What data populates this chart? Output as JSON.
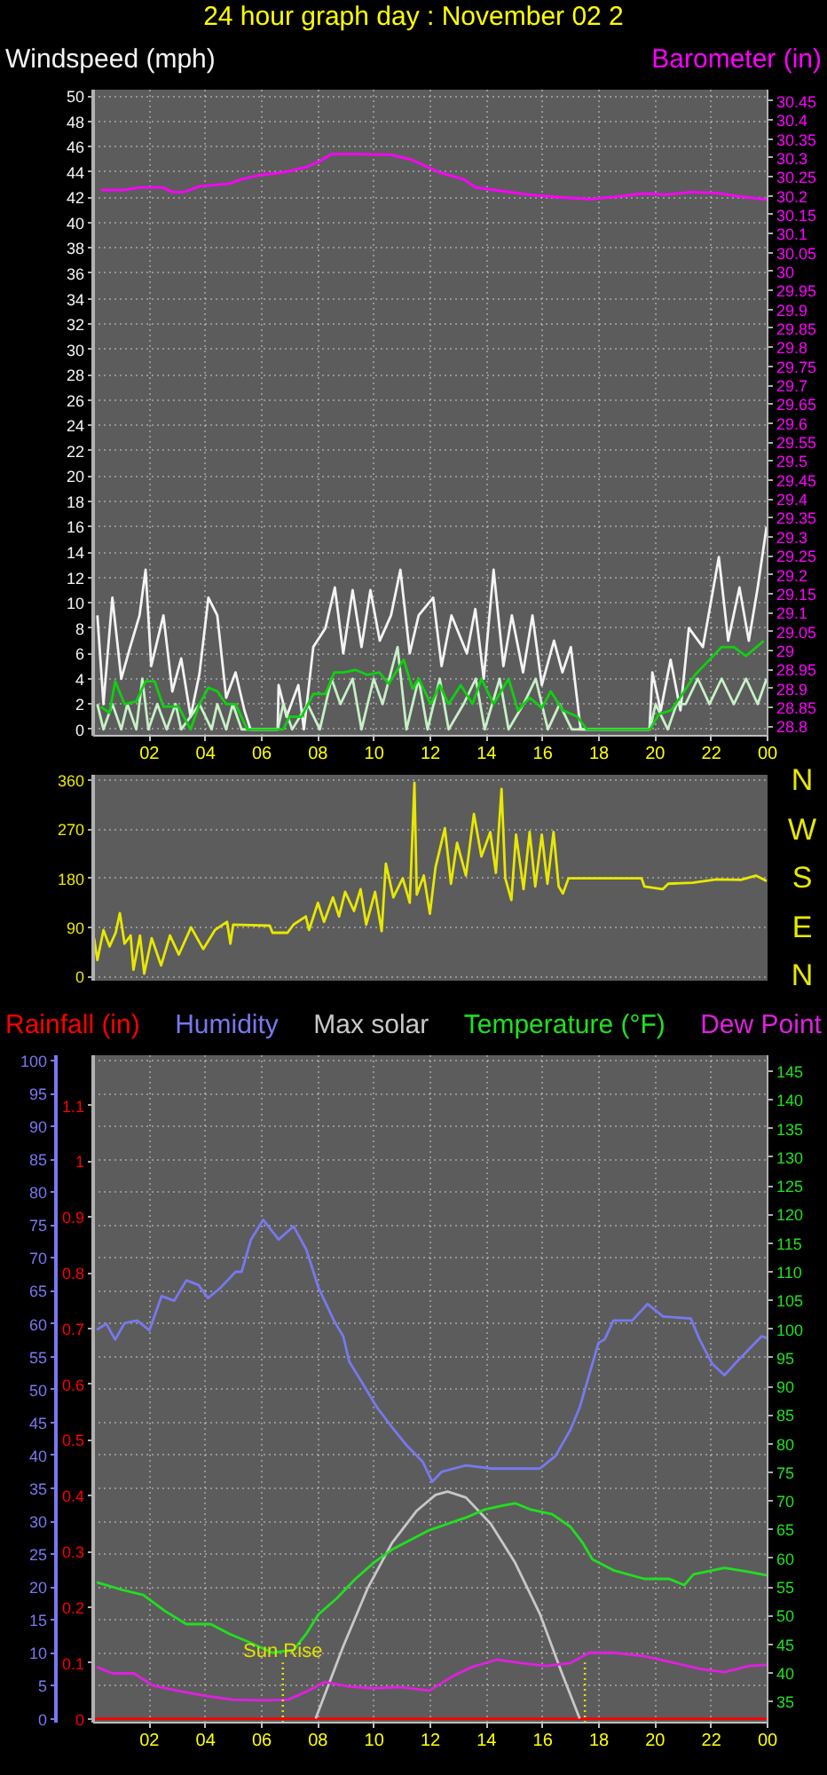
{
  "chart_data": [
    {
      "type": "line",
      "title": "24 hour graph day : November 02 2",
      "xlim": [
        "--11-02T00:00",
        "--11-03T00:00"
      ],
      "xticks": [
        {
          "value": "--11-02T02:00",
          "label": "02"
        },
        {
          "value": "--11-02T04:00",
          "label": "04"
        },
        {
          "value": "--11-02T06:00",
          "label": "06"
        },
        {
          "value": "--11-02T08:00",
          "label": "08"
        },
        {
          "value": "--11-02T10:00",
          "label": "10"
        },
        {
          "value": "--11-02T12:00",
          "label": "12"
        },
        {
          "value": "--11-02T14:00",
          "label": "14"
        },
        {
          "value": "--11-02T16:00",
          "label": "16"
        },
        {
          "value": "--11-02T18:00",
          "label": "18"
        },
        {
          "value": "--11-02T20:00",
          "label": "20"
        },
        {
          "value": "--11-02T22:00",
          "label": "22"
        },
        {
          "value": "--11-03T00:00",
          "label": "00"
        }
      ],
      "ylim": [
        -0.5,
        50.5
      ],
      "yticks": [
        0,
        2,
        4,
        6,
        8,
        10,
        12,
        14,
        16,
        18,
        20,
        22,
        24,
        26,
        28,
        30,
        32,
        34,
        36,
        38,
        40,
        42,
        44,
        46,
        48,
        50
      ],
      "y2lim": [
        28.775,
        30.48
      ],
      "y2ticks": [
        28.8,
        28.85,
        28.9,
        28.95,
        29,
        29.05,
        29.1,
        29.15,
        29.2,
        29.25,
        29.3,
        29.35,
        29.4,
        29.45,
        29.5,
        29.55,
        29.6,
        29.65,
        29.7,
        29.75,
        29.8,
        29.85,
        29.9,
        29.95,
        30,
        30.05,
        30.1,
        30.15,
        30.2,
        30.25,
        30.3,
        30.35,
        30.4,
        30.45
      ],
      "grid": true,
      "legend": "top",
      "series": [
        {
          "name": "Windspeed (mph)",
          "color": "#f4f4f4",
          "x": [
            "--11-02T00:09",
            "--11-02T00:22",
            "--11-02T00:41",
            "--11-02T01:00",
            "--11-02T01:19",
            "--11-02T01:39",
            "--11-02T01:52",
            "--11-02T02:04",
            "--11-02T02:30",
            "--11-02T02:49",
            "--11-02T03:08",
            "--11-02T03:28",
            "--11-02T03:47",
            "--11-02T04:06",
            "--11-02T04:25",
            "--11-02T04:44",
            "--11-02T05:04",
            "--11-02T05:23",
            "--11-02T05:36",
            "--11-02T06:34",
            "--11-02T06:36",
            "--11-02T06:53",
            "--11-02T07:18",
            "--11-02T07:30",
            "--11-02T07:50",
            "--11-02T08:16",
            "--11-02T08:36",
            "--11-02T08:54",
            "--11-02T09:14",
            "--11-02T09:33",
            "--11-02T09:52",
            "--11-02T10:12",
            "--11-02T10:36",
            "--11-02T10:56",
            "--11-02T11:16",
            "--11-02T11:35",
            "--11-02T12:06",
            "--11-02T12:24",
            "--11-02T12:45",
            "--11-02T13:18",
            "--11-02T13:36",
            "--11-02T13:54",
            "--11-02T14:15",
            "--11-02T14:36",
            "--11-02T14:54",
            "--11-02T15:18",
            "--11-02T15:38",
            "--11-02T15:58",
            "--11-02T16:24",
            "--11-02T16:42",
            "--11-02T17:00",
            "--11-02T17:21",
            "--11-02T19:48",
            "--11-02T19:54",
            "--11-02T20:12",
            "--11-02T20:33",
            "--11-02T20:54",
            "--11-02T21:12",
            "--11-02T21:42",
            "--11-02T22:16",
            "--11-02T22:36",
            "--11-02T23:00",
            "--11-02T23:20",
            "--11-02T23:39",
            "--11-02T23:58"
          ],
          "values": [
            9,
            2,
            10.4,
            4,
            6.5,
            9,
            12.6,
            5,
            9,
            3,
            5.6,
            1,
            4.4,
            10.4,
            9,
            2.5,
            4.5,
            1.5,
            0,
            0,
            3.5,
            1,
            3.5,
            0,
            6.5,
            8,
            11.2,
            6,
            11,
            6.5,
            11,
            7,
            9,
            12.6,
            6,
            9,
            10.4,
            5,
            9,
            6,
            9.5,
            4,
            12.6,
            5,
            9,
            4.5,
            9,
            3.5,
            7,
            4.5,
            6.5,
            0,
            0,
            4.5,
            1.5,
            5.5,
            1.5,
            8,
            6.5,
            13.6,
            7,
            11.2,
            7,
            11.2,
            16
          ]
        },
        {
          "color": "#c8f0c8",
          "x": [
            "--11-02T00:09",
            "--11-02T00:22",
            "--11-02T00:41",
            "--11-02T01:00",
            "--11-02T01:13",
            "--11-02T01:32",
            "--11-02T01:45",
            "--11-02T01:58",
            "--11-02T02:17",
            "--11-02T02:37",
            "--11-02T02:56",
            "--11-02T03:08",
            "--11-02T03:47",
            "--11-02T04:13",
            "--11-02T04:25",
            "--11-02T04:44",
            "--11-02T04:58",
            "--11-02T05:17",
            "--11-02T06:34",
            "--11-02T06:46",
            "--11-02T07:05",
            "--11-02T07:38",
            "--11-02T08:04",
            "--11-02T08:29",
            "--11-02T08:48",
            "--11-02T09:14",
            "--11-02T09:33",
            "--11-02T09:59",
            "--11-02T10:18",
            "--11-02T10:50",
            "--11-02T11:09",
            "--11-02T11:35",
            "--11-02T11:54",
            "--11-02T12:20",
            "--11-02T12:39",
            "--11-02T13:11",
            "--11-02T13:37",
            "--11-02T13:56",
            "--11-02T14:28",
            "--11-02T14:47",
            "--11-02T15:19",
            "--11-02T15:45",
            "--11-02T16:11",
            "--11-02T16:36",
            "--11-02T17:02",
            "--11-02T19:49",
            "--11-02T20:01",
            "--11-02T20:27",
            "--11-02T20:46",
            "--11-02T21:05",
            "--11-02T21:31",
            "--11-02T21:56",
            "--11-02T22:22",
            "--11-02T22:48",
            "--11-02T23:14",
            "--11-02T23:39",
            "--11-02T23:58"
          ],
          "values": [
            2,
            0,
            2,
            0,
            2,
            0,
            4,
            0,
            2,
            0,
            2,
            0,
            2,
            0,
            2,
            0,
            2,
            0,
            0,
            2,
            0,
            2,
            0,
            4,
            2,
            4,
            0,
            4,
            2,
            6.5,
            0,
            4,
            0,
            4,
            0,
            2,
            4,
            0,
            4,
            0,
            2,
            4,
            0,
            2,
            0,
            0,
            2,
            0,
            2,
            2,
            4,
            2,
            4,
            2,
            4,
            2,
            4
          ]
        },
        {
          "color": "#10d010",
          "x": [
            "--11-02T00:16",
            "--11-02T00:35",
            "--11-02T00:47",
            "--11-02T01:07",
            "--11-02T01:32",
            "--11-02T01:52",
            "--11-02T02:11",
            "--11-02T02:30",
            "--11-02T03:02",
            "--11-02T03:28",
            "--11-02T03:47",
            "--11-02T04:06",
            "--11-02T04:25",
            "--11-02T04:44",
            "--11-02T05:04",
            "--11-02T05:29",
            "--11-02T06:46",
            "--11-02T06:59",
            "--11-02T07:25",
            "--11-02T07:50",
            "--11-02T08:16",
            "--11-02T08:35",
            "--11-02T08:55",
            "--11-02T09:20",
            "--11-02T09:46",
            "--11-02T10:11",
            "--11-02T10:31",
            "--11-02T11:03",
            "--11-02T11:22",
            "--11-02T11:35",
            "--11-02T12:01",
            "--11-02T12:20",
            "--11-02T12:39",
            "--11-02T13:05",
            "--11-02T13:30",
            "--11-02T13:49",
            "--11-02T14:15",
            "--11-02T14:47",
            "--11-02T15:07",
            "--11-02T15:32",
            "--11-02T15:58",
            "--11-02T16:17",
            "--11-02T16:43",
            "--11-02T17:14",
            "--11-02T17:34",
            "--11-02T19:49",
            "--11-02T20:08",
            "--11-02T20:34",
            "--11-02T20:53",
            "--11-02T21:25",
            "--11-02T21:56",
            "--11-02T22:22",
            "--11-02T22:48",
            "--11-02T23:14",
            "--11-02T23:52"
          ],
          "values": [
            1.8,
            1.3,
            3.8,
            2,
            2.2,
            3.8,
            3.8,
            1.8,
            1.8,
            0,
            2,
            3.3,
            3,
            2,
            2,
            0,
            0,
            1,
            1,
            2.8,
            2.8,
            4.5,
            4.5,
            4.7,
            4.3,
            4.5,
            3.6,
            5.5,
            3.2,
            4,
            2,
            3.5,
            2,
            3.5,
            2,
            4,
            2,
            4,
            1.5,
            2.5,
            1.7,
            3,
            1.5,
            1,
            0,
            0,
            1.2,
            1.5,
            2.5,
            4.3,
            5.5,
            6.5,
            6.5,
            5.8,
            7
          ]
        },
        {
          "name": "Barometer (in)",
          "color": "#ff00ff",
          "axis": "y2",
          "x": [
            "--11-02T00:16",
            "--11-02T01:06",
            "--11-02T01:39",
            "--11-02T02:30",
            "--11-02T02:48",
            "--11-02T03:15",
            "--11-02T03:48",
            "--11-02T04:51",
            "--11-02T05:18",
            "--11-02T05:54",
            "--11-02T06:48",
            "--11-02T07:36",
            "--11-02T08:03",
            "--11-02T08:30",
            "--11-02T09:18",
            "--11-02T10:36",
            "--11-02T11:18",
            "--11-02T12:18",
            "--11-02T13:12",
            "--11-02T13:36",
            "--11-02T14:30",
            "--11-02T15:30",
            "--11-02T16:36",
            "--11-02T17:42",
            "--11-02T18:42",
            "--11-02T19:36",
            "--11-02T20:24",
            "--11-02T21:18",
            "--11-02T22:12",
            "--11-02T23:00",
            "--11-03T00:00"
          ],
          "values": [
            30.215,
            30.215,
            30.222,
            30.222,
            30.21,
            30.21,
            30.225,
            30.232,
            30.244,
            30.254,
            30.262,
            30.276,
            30.291,
            30.31,
            30.31,
            30.308,
            30.296,
            30.262,
            30.243,
            30.222,
            30.213,
            30.203,
            30.196,
            30.191,
            30.198,
            30.206,
            30.203,
            30.21,
            30.207,
            30.198,
            30.19
          ]
        }
      ]
    },
    {
      "type": "line",
      "xlim": [
        "--11-02T00:00",
        "--11-03T00:00"
      ],
      "ylim": [
        -8,
        370
      ],
      "yticks": [
        0,
        90,
        180,
        270,
        360
      ],
      "grid": "y",
      "tick_labels": "y",
      "annotations": [
        "N",
        "W",
        "S",
        "E",
        "N"
      ],
      "series": [
        {
          "color": "#e8e800",
          "x": [
            "--11-02T00:02",
            "--11-02T00:09",
            "--11-02T00:22",
            "--11-02T00:35",
            "--11-02T00:48",
            "--11-02T00:57",
            "--11-02T01:07",
            "--11-02T01:20",
            "--11-02T01:26",
            "--11-02T01:40",
            "--11-02T01:49",
            "--11-02T02:05",
            "--11-02T02:25",
            "--11-02T02:44",
            "--11-02T03:03",
            "--11-02T03:29",
            "--11-02T03:55",
            "--11-02T04:20",
            "--11-02T04:46",
            "--11-02T04:53",
            "--11-02T04:59",
            "--11-02T06:17",
            "--11-02T06:23",
            "--11-02T06:55",
            "--11-02T07:08",
            "--11-02T07:34",
            "--11-02T07:41",
            "--11-02T08:00",
            "--11-02T08:13",
            "--11-02T08:32",
            "--11-02T08:45",
            "--11-02T08:58",
            "--11-02T09:17",
            "--11-02T09:31",
            "--11-02T09:43",
            "--11-02T10:02",
            "--11-02T10:16",
            "--11-02T10:25",
            "--11-02T10:41",
            "--11-02T11:01",
            "--11-02T11:16",
            "--11-02T11:26",
            "--11-02T11:31",
            "--11-02T11:46",
            "--11-02T11:59",
            "--11-02T12:11",
            "--11-02T12:31",
            "--11-02T12:44",
            "--11-02T12:57",
            "--11-02T13:16",
            "--11-02T13:33",
            "--11-02T13:49",
            "--11-02T14:08",
            "--11-02T14:20",
            "--11-02T14:32",
            "--11-02T14:40",
            "--11-02T14:53",
            "--11-02T15:03",
            "--11-02T15:19",
            "--11-02T15:32",
            "--11-02T15:44",
            "--11-02T15:58",
            "--11-02T16:10",
            "--11-02T16:23",
            "--11-02T16:34",
            "--11-02T16:43",
            "--11-02T16:55",
            "--11-02T19:31",
            "--11-02T19:37",
            "--11-02T20:16",
            "--11-02T20:28",
            "--11-02T21:20",
            "--11-02T22:11",
            "--11-02T23:03",
            "--11-02T23:35",
            "--11-02T23:58"
          ],
          "values": [
            70,
            30,
            85,
            55,
            80,
            116,
            60,
            75,
            12,
            75,
            5,
            70,
            20,
            75,
            40,
            90,
            50,
            85,
            100,
            60,
            95,
            93,
            80,
            80,
            95,
            110,
            85,
            135,
            100,
            145,
            110,
            155,
            120,
            160,
            95,
            155,
            83,
            207,
            145,
            180,
            135,
            355,
            150,
            185,
            115,
            200,
            272,
            170,
            245,
            185,
            298,
            220,
            265,
            190,
            344,
            180,
            140,
            260,
            160,
            265,
            165,
            260,
            170,
            265,
            165,
            152,
            180,
            180,
            165,
            160,
            170,
            172,
            178,
            177,
            185,
            175
          ]
        }
      ]
    },
    {
      "type": "line",
      "xlim": [
        "--11-02T00:00",
        "--11-03T00:00"
      ],
      "xticks": [
        {
          "value": "--11-02T02:00",
          "label": "02"
        },
        {
          "value": "--11-02T04:00",
          "label": "04"
        },
        {
          "value": "--11-02T06:00",
          "label": "06"
        },
        {
          "value": "--11-02T08:00",
          "label": "08"
        },
        {
          "value": "--11-02T10:00",
          "label": "10"
        },
        {
          "value": "--11-02T12:00",
          "label": "12"
        },
        {
          "value": "--11-02T14:00",
          "label": "14"
        },
        {
          "value": "--11-02T16:00",
          "label": "16"
        },
        {
          "value": "--11-02T18:00",
          "label": "18"
        },
        {
          "value": "--11-02T20:00",
          "label": "20"
        },
        {
          "value": "--11-02T22:00",
          "label": "22"
        },
        {
          "value": "--11-03T00:00",
          "label": "00"
        }
      ],
      "ylim": [
        -0.6,
        100.8
      ],
      "yticks": [
        0,
        5,
        10,
        15,
        20,
        25,
        30,
        35,
        40,
        45,
        50,
        55,
        60,
        65,
        70,
        75,
        80,
        85,
        90,
        95,
        100
      ],
      "y2lim": [
        31.3,
        147.8
      ],
      "y2ticks": [
        35,
        40,
        45,
        50,
        55,
        60,
        65,
        70,
        75,
        80,
        85,
        90,
        95,
        100,
        105,
        110,
        115,
        120,
        125,
        130,
        135,
        140,
        145
      ],
      "y3lim": [
        -0.007,
        1.19
      ],
      "y3ticks": [
        0,
        0.1,
        0.2,
        0.3,
        0.4,
        0.5,
        0.6,
        0.7,
        0.8,
        0.9,
        1,
        1.1
      ],
      "grid": true,
      "legend": "top",
      "ref_lines": [
        {
          "axis": "x",
          "value": "--11-02T06:45",
          "label": "Sun Rise",
          "color": "#e0e000",
          "line_style": "dotted"
        },
        {
          "axis": "x",
          "value": "--11-02T17:30",
          "color": "#e0e000",
          "line_style": "dotted"
        }
      ],
      "series": [
        {
          "name": "Rainfall (in)",
          "color": "#ff0000",
          "axis": "y3",
          "x": [
            "--11-02T00:00",
            "--11-03T00:00"
          ],
          "values": [
            0,
            0
          ]
        },
        {
          "name": "Humidity",
          "color": "#7878f0",
          "x": [
            "--11-02T00:08",
            "--11-02T00:28",
            "--11-02T00:47",
            "--11-02T01:07",
            "--11-02T01:34",
            "--11-02T02:00",
            "--11-02T02:26",
            "--11-02T02:53",
            "--11-02T03:19",
            "--11-02T03:45",
            "--11-02T04:05",
            "--11-02T04:31",
            "--11-02T05:04",
            "--11-02T05:17",
            "--11-02T05:37",
            "--11-02T06:03",
            "--11-02T06:36",
            "--11-02T07:08",
            "--11-02T07:35",
            "--11-02T08:01",
            "--11-02T08:34",
            "--11-02T08:54",
            "--11-02T09:07",
            "--11-02T09:33",
            "--11-02T10:06",
            "--11-02T10:38",
            "--11-02T11:11",
            "--11-02T11:44",
            "--11-02T12:04",
            "--11-02T12:24",
            "--11-02T13:16",
            "--11-02T14:09",
            "--11-02T15:01",
            "--11-02T15:54",
            "--11-02T16:27",
            "--11-02T16:59",
            "--11-02T17:19",
            "--11-02T17:39",
            "--11-02T17:59",
            "--11-02T18:12",
            "--11-02T18:31",
            "--11-02T19:11",
            "--11-02T19:44",
            "--11-02T20:17",
            "--11-02T21:16",
            "--11-02T21:35",
            "--11-02T22:02",
            "--11-02T22:28",
            "--11-02T22:54",
            "--11-02T23:20",
            "--11-02T23:47",
            "--11-03T00:00"
          ],
          "values": [
            59.1,
            60,
            57.6,
            60.1,
            60.5,
            59,
            64.2,
            63.5,
            66.6,
            65.9,
            63.9,
            65.4,
            67.9,
            67.9,
            72.8,
            75.8,
            72.8,
            74.8,
            71.3,
            65.5,
            60.5,
            58.1,
            54.2,
            51.2,
            47.3,
            44.3,
            41.4,
            39,
            36,
            37.5,
            38.5,
            38,
            38,
            38,
            39.9,
            43.9,
            47.3,
            52.2,
            57.1,
            57.6,
            60.5,
            60.5,
            63,
            61.1,
            60.8,
            57.6,
            53.9,
            52.2,
            54.2,
            56.1,
            58.1,
            57.8
          ]
        },
        {
          "name": "Max solar",
          "color": "#c8c8c8",
          "x": [
            "--11-02T07:55",
            "--11-02T08:54",
            "--11-02T09:46",
            "--11-02T10:38",
            "--11-02T11:31",
            "--11-02T12:11",
            "--11-02T12:37",
            "--11-02T13:16",
            "--11-02T14:09",
            "--11-02T15:01",
            "--11-02T15:54",
            "--11-02T16:40",
            "--11-02T17:19"
          ],
          "values": [
            0,
            11,
            19.8,
            26.7,
            31.6,
            34,
            34.5,
            33.6,
            29.6,
            23.7,
            15.9,
            7.1,
            0
          ]
        },
        {
          "name": "Temperature (°F)",
          "color": "#20e020",
          "axis": "y2",
          "x": [
            "--11-02T00:08",
            "--11-02T01:01",
            "--11-02T01:47",
            "--11-02T02:33",
            "--11-02T03:19",
            "--11-02T04:11",
            "--11-02T04:51",
            "--11-02T05:37",
            "--11-02T06:23",
            "--11-02T07:08",
            "--11-02T07:35",
            "--11-02T08:01",
            "--11-02T08:40",
            "--11-02T09:20",
            "--11-02T09:59",
            "--11-02T10:38",
            "--11-02T11:18",
            "--11-02T11:58",
            "--11-02T12:37",
            "--11-02T13:16",
            "--11-02T13:56",
            "--11-02T14:35",
            "--11-02T15:01",
            "--11-02T15:34",
            "--11-02T16:20",
            "--11-02T16:59",
            "--11-02T17:26",
            "--11-02T17:46",
            "--11-02T18:31",
            "--11-02T19:37",
            "--11-02T20:30",
            "--11-02T21:02",
            "--11-02T21:22",
            "--11-02T22:28",
            "--11-02T23:20",
            "--11-03T00:00"
          ],
          "values": [
            55.8,
            54.5,
            53.6,
            50.8,
            48.5,
            48.5,
            46.8,
            45.2,
            43.5,
            44,
            46.8,
            50.2,
            53,
            56.4,
            59.2,
            61.5,
            63.2,
            64.9,
            66,
            67.1,
            68.5,
            69.2,
            69.6,
            68.5,
            67.7,
            65.5,
            62.6,
            59.8,
            57.9,
            56.4,
            56.4,
            55.3,
            57.2,
            58.3,
            57.6,
            57
          ]
        },
        {
          "name": "Dew Point",
          "color": "#e020e0",
          "axis": "y2",
          "x": [
            "--11-02T00:08",
            "--11-02T00:41",
            "--11-02T01:27",
            "--11-02T02:07",
            "--11-02T02:59",
            "--11-02T03:52",
            "--11-02T04:58",
            "--11-02T06:03",
            "--11-02T06:56",
            "--11-02T07:35",
            "--11-02T08:14",
            "--11-02T09:07",
            "--11-02T09:59",
            "--11-02T10:52",
            "--11-02T11:58",
            "--11-02T12:50",
            "--11-02T13:29",
            "--11-02T14:22",
            "--11-02T15:14",
            "--11-02T16:07",
            "--11-02T16:59",
            "--11-02T17:39",
            "--11-02T18:31",
            "--11-02T19:37",
            "--11-02T20:43",
            "--11-02T21:35",
            "--11-02T22:28",
            "--11-02T23:20",
            "--11-03T00:00"
          ],
          "values": [
            41,
            39.9,
            39.9,
            37.8,
            36.9,
            36.1,
            35.3,
            35.2,
            35.3,
            36.7,
            38.4,
            37.6,
            37.3,
            37.5,
            36.9,
            39.5,
            41,
            42.3,
            41.7,
            41.2,
            41.7,
            43.5,
            43.5,
            42.9,
            41.7,
            40.7,
            40.1,
            41.2,
            41.4
          ]
        }
      ]
    }
  ]
}
